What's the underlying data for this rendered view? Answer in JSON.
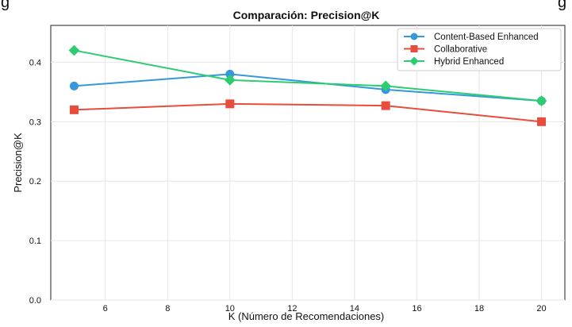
{
  "header_fragment": "g",
  "header_fragment_right": "g",
  "chart_data": {
    "type": "line",
    "title": "Comparación: Precision@K",
    "xlabel": "K (Número de Recomendaciones)",
    "ylabel": "Precision@K",
    "x": [
      5,
      10,
      15,
      20
    ],
    "xlim": [
      4.25,
      20.75
    ],
    "ylim": [
      0.0,
      0.462
    ],
    "xticks": [
      6,
      8,
      10,
      12,
      14,
      16,
      18,
      20
    ],
    "yticks": [
      0.0,
      0.1,
      0.2,
      0.3,
      0.4
    ],
    "ytick_labels": [
      "0.0",
      "0.1",
      "0.2",
      "0.3",
      "0.4"
    ],
    "grid": true,
    "legend_position": "top-right",
    "series": [
      {
        "name": "Content-Based Enhanced",
        "values": [
          0.36,
          0.38,
          0.354,
          0.335
        ],
        "color": "#3498db",
        "marker": "circle"
      },
      {
        "name": "Collaborative",
        "values": [
          0.32,
          0.33,
          0.327,
          0.3
        ],
        "color": "#e74c3c",
        "marker": "square"
      },
      {
        "name": "Hybrid Enhanced",
        "values": [
          0.42,
          0.37,
          0.36,
          0.335
        ],
        "color": "#2ecc71",
        "marker": "diamond"
      }
    ]
  }
}
